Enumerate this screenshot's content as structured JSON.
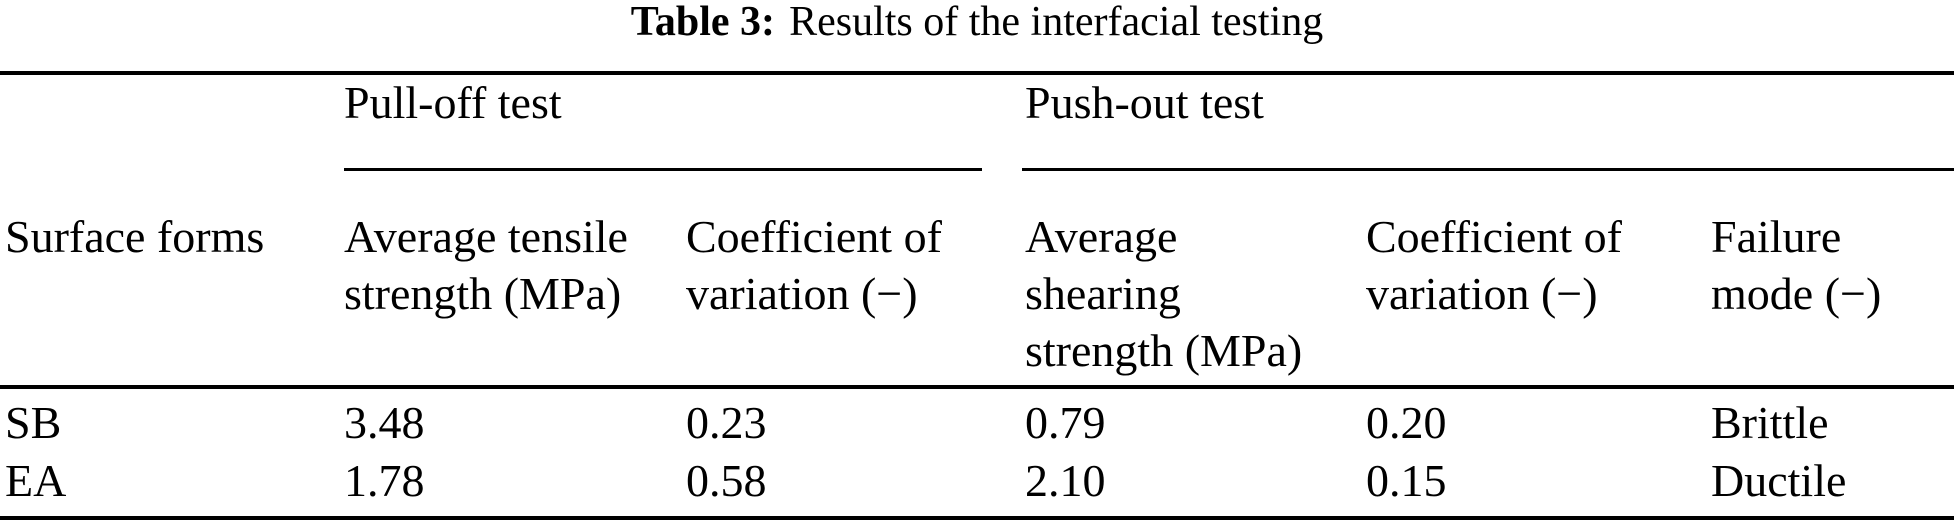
{
  "title": {
    "label": "Table 3:",
    "text": "Results of the interfacial testing"
  },
  "table": {
    "group_headers": {
      "pull_off": "Pull-off test",
      "push_out": "Push-out test"
    },
    "column_headers": {
      "surface_forms": "Surface forms",
      "avg_tensile": [
        "Average tensile",
        "strength (MPa)"
      ],
      "cov_pull_off": [
        "Coefficient of",
        "variation (−)"
      ],
      "avg_shearing": [
        "Average",
        "shearing",
        "strength (MPa)"
      ],
      "cov_push_out": [
        "Coefficient of",
        "variation (−)"
      ],
      "failure_mode": [
        "Failure",
        "mode (−)"
      ]
    },
    "rows": [
      {
        "surface_form": "SB",
        "avg_tensile_mpa": "3.48",
        "cov_pull_off": "0.23",
        "avg_shearing_mpa": "0.79",
        "cov_push_out": "0.20",
        "failure_mode": "Brittle"
      },
      {
        "surface_form": "EA",
        "avg_tensile_mpa": "1.78",
        "cov_pull_off": "0.58",
        "avg_shearing_mpa": "2.10",
        "cov_push_out": "0.15",
        "failure_mode": "Ductile"
      }
    ]
  },
  "colors": {
    "background": "#ffffff",
    "text": "#000000",
    "rule": "#000000"
  }
}
